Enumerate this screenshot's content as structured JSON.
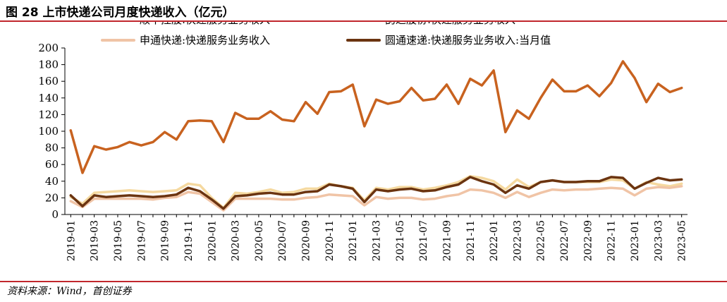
{
  "header": {
    "title": "图 28 上市快递公司月度快递收入（亿元）"
  },
  "footer": {
    "source": "资料来源：Wind，首创证券"
  },
  "colors": {
    "rule": "#c1272d"
  },
  "chart_data": {
    "type": "line",
    "title": "",
    "xlabel": "",
    "ylabel": "",
    "ylim": [
      0,
      200
    ],
    "yticks": [
      0,
      20,
      40,
      60,
      80,
      100,
      120,
      140,
      160,
      180,
      200
    ],
    "grid": false,
    "legend_position": "top",
    "x": [
      "2019-01",
      "2019-02",
      "2019-03",
      "2019-04",
      "2019-05",
      "2019-06",
      "2019-07",
      "2019-08",
      "2019-09",
      "2019-10",
      "2019-11",
      "2019-12",
      "2020-01",
      "2020-02",
      "2020-03",
      "2020-04",
      "2020-05",
      "2020-06",
      "2020-07",
      "2020-08",
      "2020-09",
      "2020-10",
      "2020-11",
      "2020-12",
      "2021-01",
      "2021-02",
      "2021-03",
      "2021-04",
      "2021-05",
      "2021-06",
      "2021-07",
      "2021-08",
      "2021-09",
      "2021-10",
      "2021-11",
      "2021-12",
      "2022-01",
      "2022-02",
      "2022-03",
      "2022-04",
      "2022-05",
      "2022-06",
      "2022-07",
      "2022-08",
      "2022-09",
      "2022-10",
      "2022-11",
      "2022-12",
      "2023-01",
      "2023-02",
      "2023-03",
      "2023-04",
      "2023-05"
    ],
    "xtick_labels": [
      "2019-01",
      "2019-03",
      "2019-05",
      "2019-07",
      "2019-09",
      "2019-11",
      "2020-01",
      "2020-03",
      "2020-05",
      "2020-07",
      "2020-09",
      "2020-11",
      "2021-01",
      "2021-03",
      "2021-05",
      "2021-07",
      "2021-09",
      "2021-11",
      "2022-01",
      "2022-03",
      "2022-05",
      "2022-07",
      "2022-09",
      "2022-11",
      "2023-01",
      "2023-03",
      "2023-05"
    ],
    "series": [
      {
        "name": "顺丰控股:快递服务业务收入",
        "color": "#c8621f",
        "values": [
          101,
          50,
          82,
          78,
          81,
          87,
          83,
          87,
          99,
          90,
          112,
          113,
          112,
          87,
          122,
          115,
          115,
          124,
          114,
          112,
          135,
          121,
          147,
          148,
          156,
          106,
          138,
          133,
          136,
          152,
          137,
          139,
          156,
          133,
          163,
          155,
          173,
          99,
          125,
          115,
          140,
          162,
          148,
          148,
          155,
          142,
          158,
          184,
          164,
          135,
          157,
          147,
          152
        ]
      },
      {
        "name": "韵达股份:快递服务业务收入",
        "color": "#f5d9a0",
        "values": [
          21,
          13,
          26,
          27,
          28,
          29,
          28,
          27,
          28,
          29,
          37,
          35,
          20,
          8,
          26,
          25,
          27,
          30,
          26,
          27,
          31,
          31,
          37,
          34,
          32,
          17,
          32,
          30,
          33,
          33,
          30,
          32,
          35,
          39,
          46,
          44,
          40,
          30,
          42,
          33,
          39,
          41,
          39,
          39,
          39,
          39,
          42,
          41,
          31,
          39,
          36,
          34,
          37
        ]
      },
      {
        "name": "申通快递:快递服务业务收入",
        "color": "#f0c4a6",
        "values": [
          16,
          9,
          19,
          19,
          19,
          19,
          19,
          18,
          20,
          21,
          27,
          25,
          15,
          5,
          19,
          19,
          19,
          19,
          18,
          18,
          20,
          21,
          24,
          23,
          22,
          11,
          21,
          19,
          20,
          20,
          18,
          19,
          22,
          24,
          30,
          29,
          26,
          20,
          27,
          21,
          26,
          30,
          29,
          30,
          30,
          31,
          32,
          31,
          23,
          31,
          33,
          32,
          34
        ]
      },
      {
        "name": "圆通速递:快递服务业务收入:当月值",
        "color": "#6b3410",
        "values": [
          23,
          10,
          23,
          21,
          22,
          23,
          22,
          21,
          22,
          24,
          32,
          28,
          18,
          7,
          22,
          23,
          25,
          26,
          24,
          24,
          27,
          28,
          36,
          34,
          31,
          15,
          30,
          28,
          30,
          31,
          28,
          29,
          33,
          36,
          45,
          40,
          36,
          26,
          35,
          31,
          39,
          41,
          39,
          39,
          40,
          40,
          45,
          44,
          31,
          38,
          44,
          41,
          42
        ]
      }
    ]
  }
}
